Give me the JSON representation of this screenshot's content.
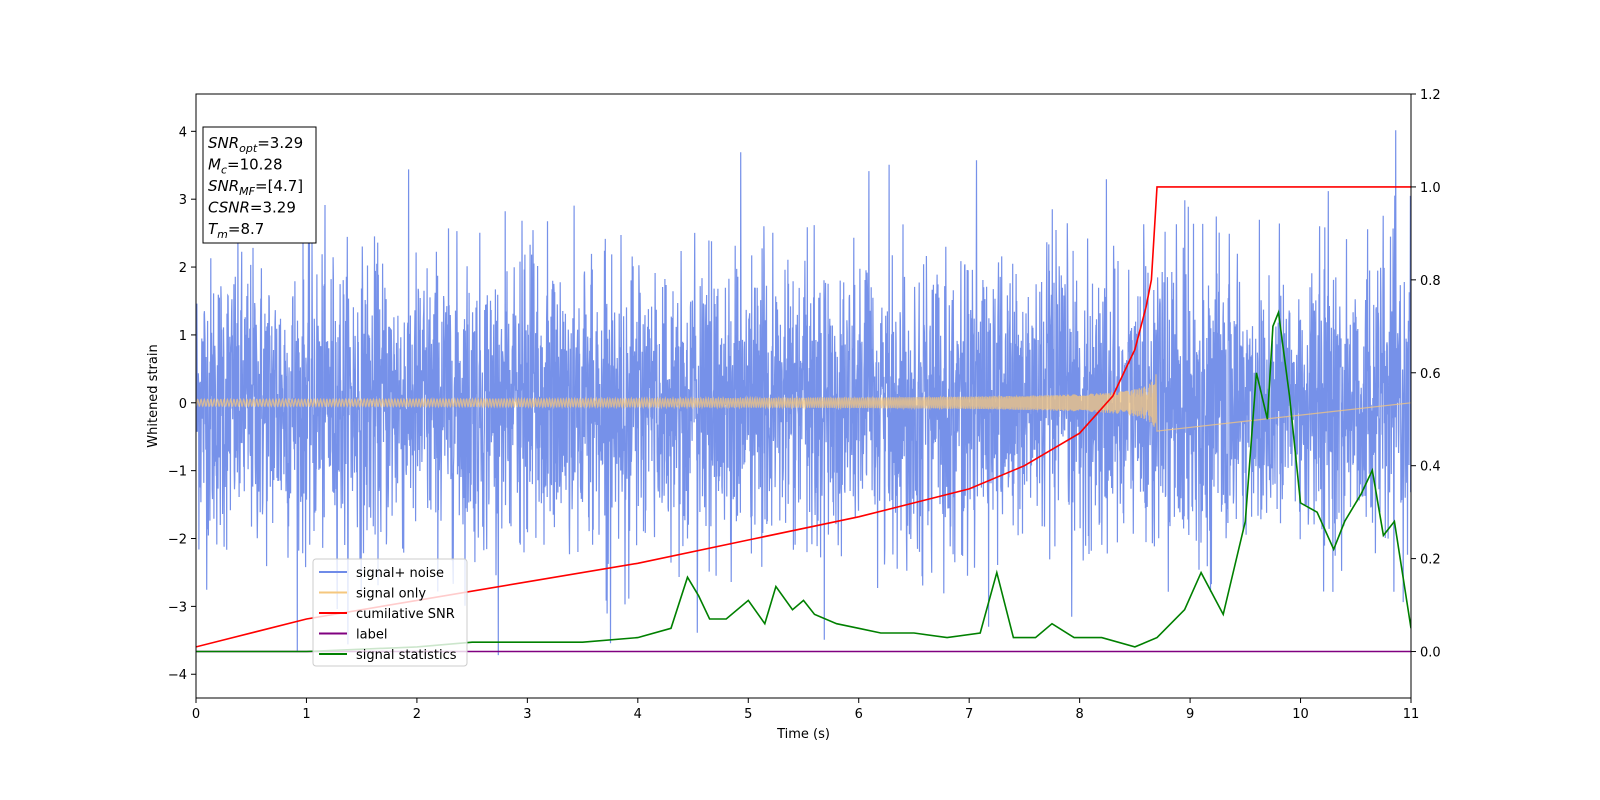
{
  "chart_data": {
    "type": "line",
    "xlabel": "Time (s)",
    "ylabel_left": "Whitened strain",
    "ylabel_right": "",
    "xlim": [
      0,
      11
    ],
    "ylim_left": [
      -4.35,
      4.55
    ],
    "ylim_right": [
      -0.1,
      1.2
    ],
    "x_ticks": [
      0,
      1,
      2,
      3,
      4,
      5,
      6,
      7,
      8,
      9,
      10,
      11
    ],
    "y_left_ticks": [
      -4,
      -3,
      -2,
      -1,
      0,
      1,
      2,
      3,
      4
    ],
    "y_right_ticks": [
      0.0,
      0.2,
      0.4,
      0.6,
      0.8,
      1.0,
      1.2
    ],
    "grid": false,
    "legend_position": "lower-left",
    "info_box": {
      "lines": [
        {
          "base": "SNR",
          "sub": "opt",
          "value": "=3.29"
        },
        {
          "base": "M",
          "sub": "c",
          "value": "=10.28"
        },
        {
          "base": "SNR",
          "sub": "MF",
          "value": "=[4.7]"
        },
        {
          "base": "CSNR",
          "sub": "",
          "value": "=3.29"
        },
        {
          "base": "T",
          "sub": "m",
          "value": "=8.7"
        }
      ]
    },
    "series": [
      {
        "name": "signal+ noise",
        "axis": "left",
        "color": "#6f8be8",
        "kind": "noise",
        "time_range": [
          0,
          11
        ],
        "typical_range": [
          -2.1,
          2.3
        ],
        "peak_max": 4.15,
        "peak_min": -3.95
      },
      {
        "name": "signal only",
        "axis": "left",
        "color": "#f5c77e",
        "kind": "chirp",
        "time_range": [
          0,
          8.7
        ],
        "amplitude_at_merger": 0.5,
        "merger_time": 8.7
      },
      {
        "name": "cumilative SNR",
        "axis": "right",
        "color": "#ff0000",
        "x": [
          0,
          1,
          2,
          3,
          4,
          5,
          6,
          7,
          7.5,
          8,
          8.3,
          8.5,
          8.6,
          8.65,
          8.7,
          11
        ],
        "y": [
          0.01,
          0.07,
          0.11,
          0.15,
          0.19,
          0.24,
          0.29,
          0.35,
          0.4,
          0.47,
          0.55,
          0.65,
          0.74,
          0.8,
          1.0,
          1.0
        ]
      },
      {
        "name": "label",
        "axis": "right",
        "color": "#800080",
        "x": [
          0,
          11
        ],
        "y": [
          0.0,
          0.0
        ]
      },
      {
        "name": "signal statistics",
        "axis": "right",
        "color": "#008000",
        "x": [
          0,
          1,
          2,
          2.5,
          3,
          3.5,
          4,
          4.3,
          4.45,
          4.55,
          4.65,
          4.8,
          5.0,
          5.15,
          5.25,
          5.4,
          5.5,
          5.6,
          5.8,
          6.0,
          6.2,
          6.5,
          6.8,
          7.1,
          7.25,
          7.4,
          7.6,
          7.75,
          7.95,
          8.2,
          8.5,
          8.7,
          8.95,
          9.1,
          9.3,
          9.5,
          9.6,
          9.7,
          9.75,
          9.8,
          9.9,
          10.0,
          10.15,
          10.3,
          10.4,
          10.55,
          10.65,
          10.75,
          10.85,
          11.0
        ],
        "y": [
          0.0,
          0.0,
          0.01,
          0.02,
          0.02,
          0.02,
          0.03,
          0.05,
          0.16,
          0.12,
          0.07,
          0.07,
          0.11,
          0.06,
          0.14,
          0.09,
          0.11,
          0.08,
          0.06,
          0.05,
          0.04,
          0.04,
          0.03,
          0.04,
          0.17,
          0.03,
          0.03,
          0.06,
          0.03,
          0.03,
          0.01,
          0.03,
          0.09,
          0.17,
          0.08,
          0.28,
          0.6,
          0.5,
          0.7,
          0.73,
          0.55,
          0.32,
          0.3,
          0.22,
          0.28,
          0.34,
          0.39,
          0.25,
          0.28,
          0.05
        ]
      }
    ]
  },
  "legend": {
    "items": [
      {
        "label": "signal+ noise",
        "color": "#6f8be8"
      },
      {
        "label": "signal only",
        "color": "#f5c77e"
      },
      {
        "label": "cumilative SNR",
        "color": "#ff0000"
      },
      {
        "label": "label",
        "color": "#800080"
      },
      {
        "label": "signal statistics",
        "color": "#008000"
      }
    ]
  }
}
